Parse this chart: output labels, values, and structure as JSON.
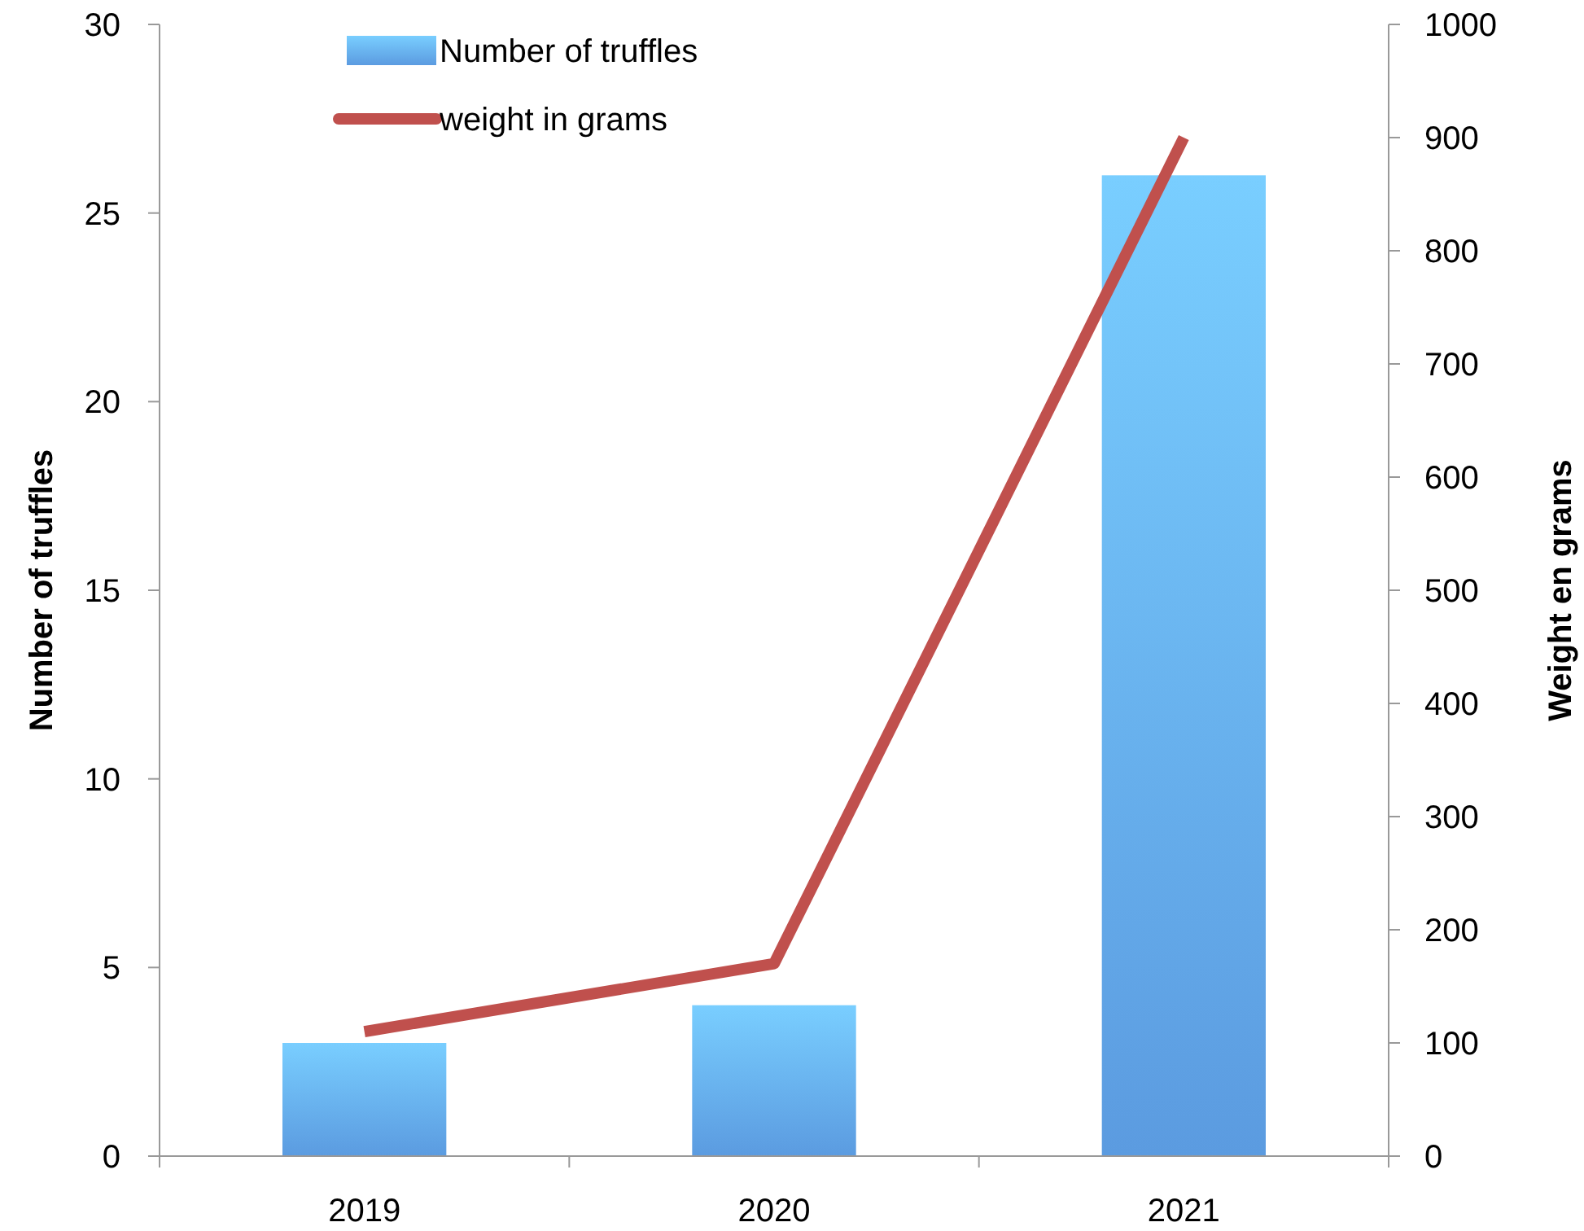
{
  "chart_data": {
    "type": "bar",
    "categories": [
      "2019",
      "2020",
      "2021"
    ],
    "ylabel": "Number of truffles",
    "y2label": "Weight en grams",
    "series": [
      {
        "name": "Number of truffles",
        "color": "#5b9be0",
        "values": [
          3,
          4,
          26
        ]
      },
      {
        "name": "weight in grams",
        "type": "line",
        "axis": "y2",
        "color": "#c0504d",
        "values": [
          110,
          170,
          900
        ]
      }
    ],
    "ylim": [
      0,
      30
    ],
    "yticks": [
      0,
      5,
      10,
      15,
      20,
      25,
      30
    ],
    "y2lim": [
      0,
      1000
    ],
    "y2ticks": [
      0,
      100,
      200,
      300,
      400,
      500,
      600,
      700,
      800,
      900,
      1000
    ],
    "legend": "top left",
    "grid": false
  }
}
